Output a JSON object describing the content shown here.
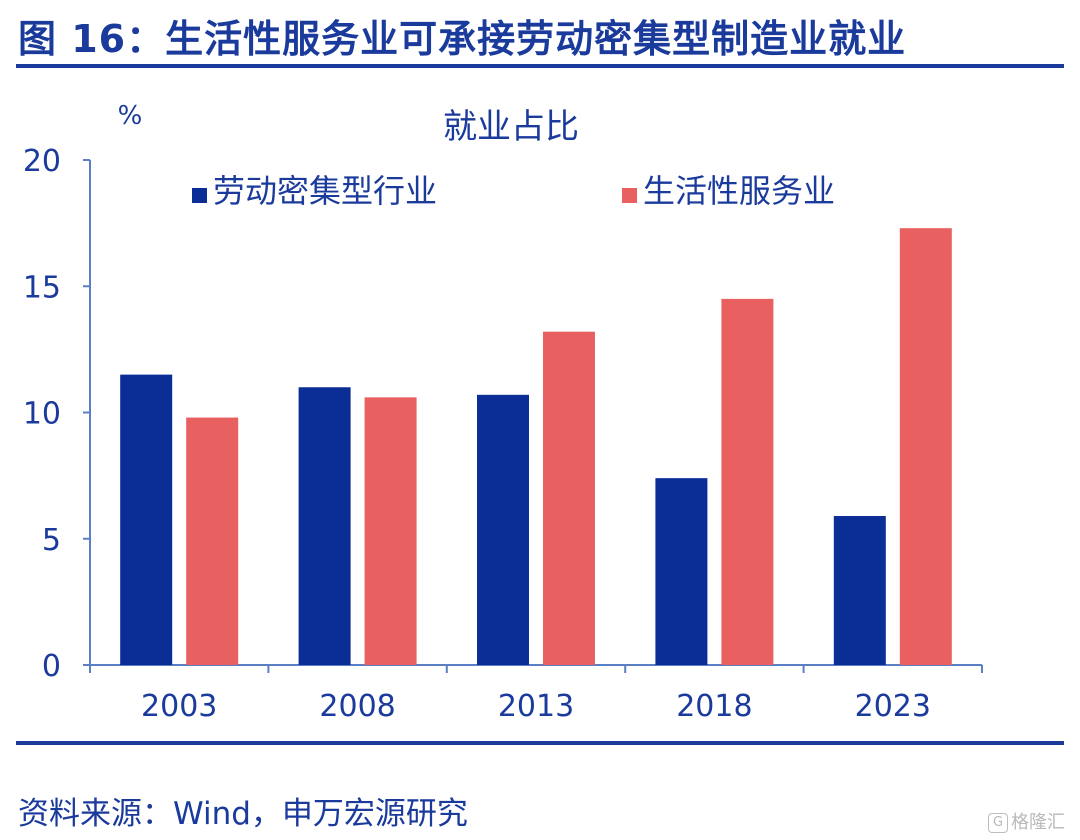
{
  "figure": {
    "title": "图 16：生活性服务业可承接劳动密集型制造业就业",
    "source": "资料来源：Wind，申万宏源研究",
    "watermark": "格隆汇"
  },
  "chart_data": {
    "type": "bar",
    "title": "就业占比",
    "y_unit": "%",
    "xlabel": "",
    "ylabel": "",
    "categories": [
      "2003",
      "2008",
      "2013",
      "2018",
      "2023"
    ],
    "series": [
      {
        "name": "劳动密集型行业",
        "values": [
          11.5,
          11.0,
          10.7,
          7.4,
          5.9
        ],
        "color": "#0a2d96"
      },
      {
        "name": "生活性服务业",
        "values": [
          9.8,
          10.6,
          13.2,
          14.5,
          17.3
        ],
        "color": "#e86060"
      }
    ],
    "ylim": [
      0,
      20
    ],
    "yticks": [
      0,
      5,
      10,
      15,
      20
    ],
    "legend_position": "top",
    "grid": false,
    "axis_color": "#5b7fc4",
    "text_color": "#1a3a9c"
  }
}
